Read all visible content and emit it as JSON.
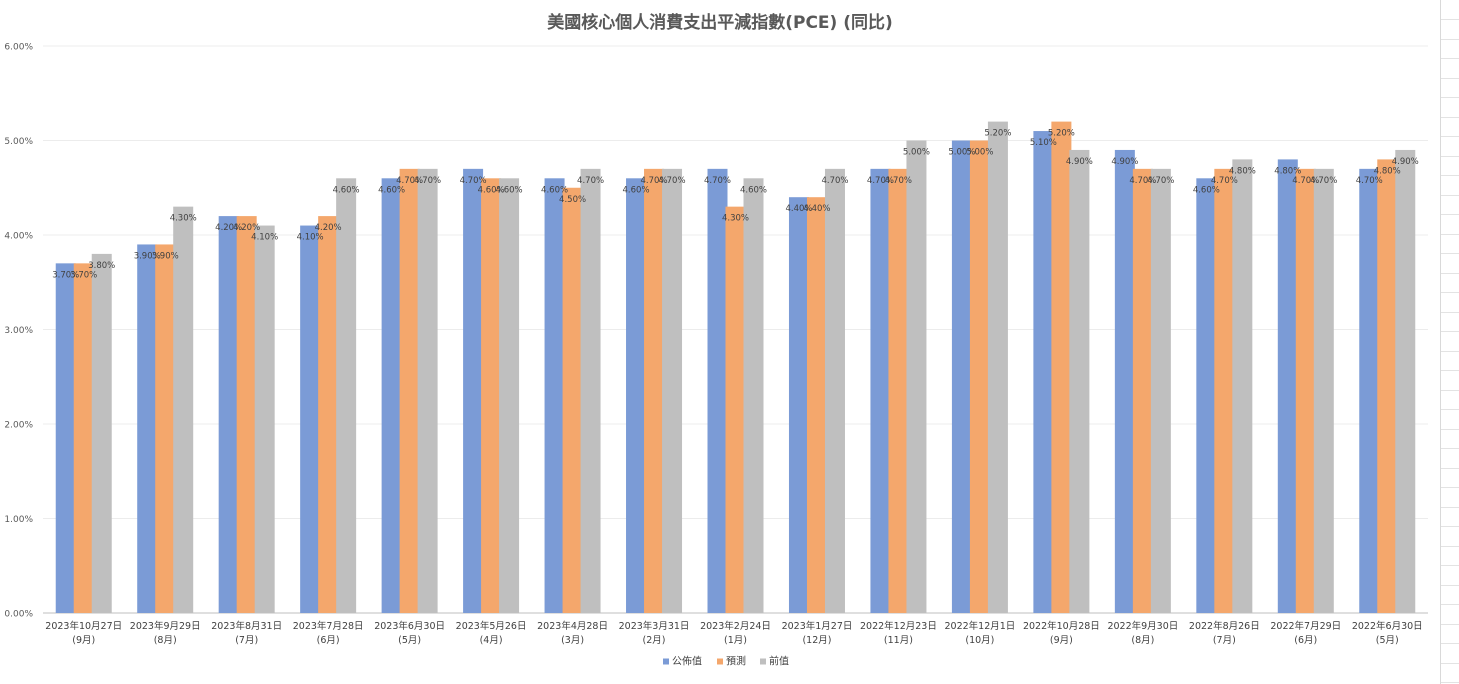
{
  "chart_data": {
    "type": "bar",
    "title": "美國核心個人消費支出平減指數(PCE) (同比)",
    "xlabel": "",
    "ylabel": "",
    "ylim": [
      0,
      6
    ],
    "y_ticks": [
      "0.00%",
      "1.00%",
      "2.00%",
      "3.00%",
      "4.00%",
      "5.00%",
      "6.00%"
    ],
    "grid": true,
    "legend_position": "bottom",
    "categories": [
      {
        "date": "2023年10月27日",
        "month": "(9月)"
      },
      {
        "date": "2023年9月29日",
        "month": "(8月)"
      },
      {
        "date": "2023年8月31日",
        "month": "(7月)"
      },
      {
        "date": "2023年7月28日",
        "month": "(6月)"
      },
      {
        "date": "2023年6月30日",
        "month": "(5月)"
      },
      {
        "date": "2023年5月26日",
        "month": "(4月)"
      },
      {
        "date": "2023年4月28日",
        "month": "(3月)"
      },
      {
        "date": "2023年3月31日",
        "month": "(2月)"
      },
      {
        "date": "2023年2月24日",
        "month": "(1月)"
      },
      {
        "date": "2023年1月27日",
        "month": "(12月)"
      },
      {
        "date": "2022年12月23日",
        "month": "(11月)"
      },
      {
        "date": "2022年12月1日",
        "month": "(10月)"
      },
      {
        "date": "2022年10月28日",
        "month": "(9月)"
      },
      {
        "date": "2022年9月30日",
        "month": "(8月)"
      },
      {
        "date": "2022年8月26日",
        "month": "(7月)"
      },
      {
        "date": "2022年7月29日",
        "month": "(6月)"
      },
      {
        "date": "2022年6月30日",
        "month": "(5月)"
      }
    ],
    "series": [
      {
        "name": "公佈值",
        "color": "#7b9bd6",
        "values": [
          3.7,
          3.9,
          4.2,
          4.1,
          4.6,
          4.7,
          4.6,
          4.6,
          4.7,
          4.4,
          4.7,
          5.0,
          5.1,
          4.9,
          4.6,
          4.8,
          4.7
        ]
      },
      {
        "name": "預測",
        "color": "#f4a76c",
        "values": [
          3.7,
          3.9,
          4.2,
          4.2,
          4.7,
          4.6,
          4.5,
          4.7,
          4.3,
          4.4,
          4.7,
          5.0,
          5.2,
          4.7,
          4.7,
          4.7,
          4.8
        ]
      },
      {
        "name": "前值",
        "color": "#bfbfbf",
        "values": [
          3.8,
          4.3,
          4.1,
          4.6,
          4.7,
          4.6,
          4.7,
          4.7,
          4.6,
          4.7,
          5.0,
          5.2,
          4.9,
          4.7,
          4.8,
          4.7,
          4.9
        ]
      }
    ]
  }
}
